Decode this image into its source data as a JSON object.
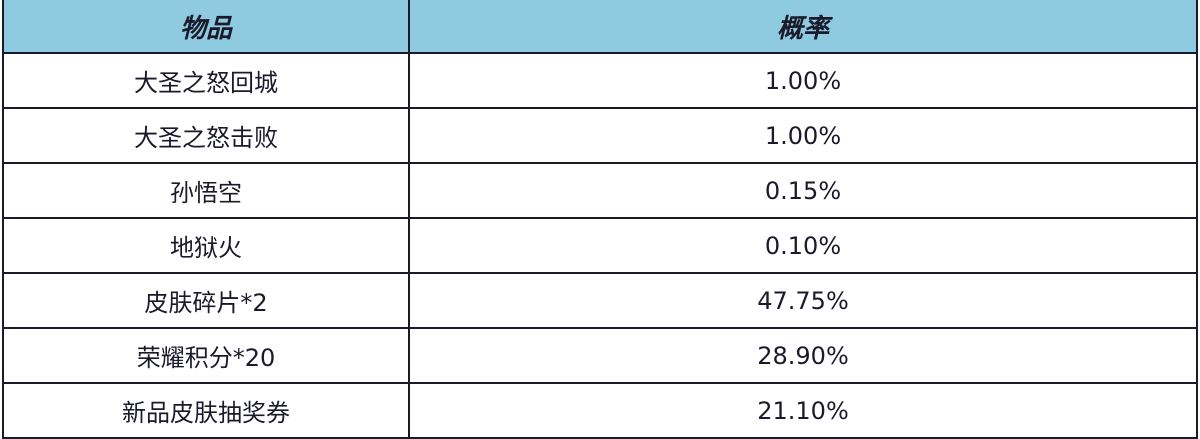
{
  "header_color": "#8ecbe0",
  "table": {
    "headers": [
      "物品",
      "概率"
    ],
    "rows": [
      {
        "item": "大圣之怒回城",
        "prob": "1.00%"
      },
      {
        "item": "大圣之怒击败",
        "prob": "1.00%"
      },
      {
        "item": "孙悟空",
        "prob": "0.15%"
      },
      {
        "item": "地狱火",
        "prob": "0.10%"
      },
      {
        "item": "皮肤碎片*2",
        "prob": "47.75%"
      },
      {
        "item": "荣耀积分*20",
        "prob": "28.90%"
      },
      {
        "item": "新品皮肤抽奖券",
        "prob": "21.10%"
      }
    ]
  }
}
